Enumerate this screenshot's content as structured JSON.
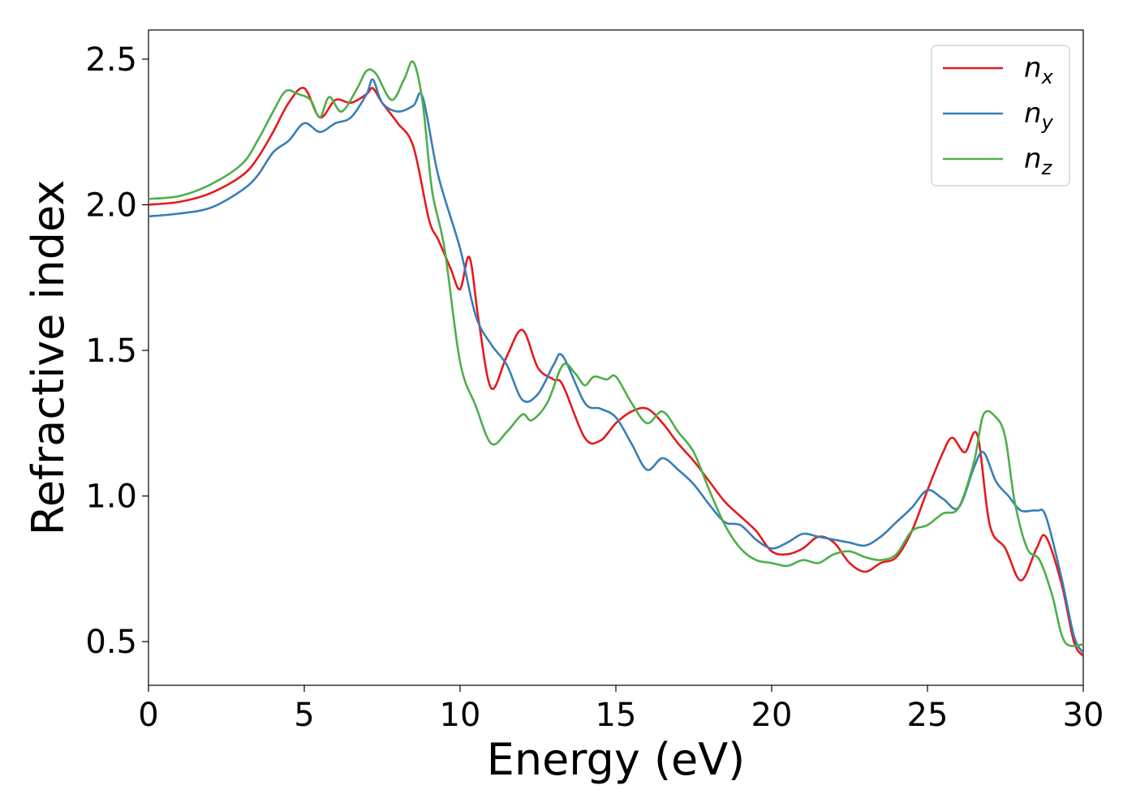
{
  "chart_data": {
    "type": "line",
    "xlabel": "Energy (eV)",
    "ylabel": "Refractive index",
    "xlim": [
      0,
      30
    ],
    "ylim": [
      0.35,
      2.6
    ],
    "xticks": [
      0,
      5,
      10,
      15,
      20,
      25,
      30
    ],
    "xtick_labels": [
      "0",
      "5",
      "10",
      "15",
      "20",
      "25",
      "30"
    ],
    "yticks": [
      0.5,
      1.0,
      1.5,
      2.0,
      2.5
    ],
    "ytick_labels": [
      "0.5",
      "1.0",
      "1.5",
      "2.0",
      "2.5"
    ],
    "grid": false,
    "legend_position": "top-right",
    "series": [
      {
        "name": "n_x",
        "label_base": "n",
        "label_sub": "x",
        "color": "#e41a1c",
        "points": [
          [
            0,
            2.0
          ],
          [
            1,
            2.01
          ],
          [
            2,
            2.04
          ],
          [
            3,
            2.1
          ],
          [
            3.5,
            2.16
          ],
          [
            4,
            2.25
          ],
          [
            4.5,
            2.35
          ],
          [
            5,
            2.4
          ],
          [
            5.5,
            2.3
          ],
          [
            6,
            2.36
          ],
          [
            6.5,
            2.35
          ],
          [
            7,
            2.38
          ],
          [
            7.2,
            2.4
          ],
          [
            7.5,
            2.35
          ],
          [
            8,
            2.28
          ],
          [
            8.5,
            2.2
          ],
          [
            9,
            1.95
          ],
          [
            9.3,
            1.88
          ],
          [
            9.7,
            1.78
          ],
          [
            10,
            1.71
          ],
          [
            10.3,
            1.82
          ],
          [
            10.6,
            1.6
          ],
          [
            11,
            1.37
          ],
          [
            11.5,
            1.48
          ],
          [
            12,
            1.57
          ],
          [
            12.5,
            1.44
          ],
          [
            13,
            1.4
          ],
          [
            13.3,
            1.38
          ],
          [
            14,
            1.2
          ],
          [
            14.5,
            1.19
          ],
          [
            15,
            1.25
          ],
          [
            15.5,
            1.29
          ],
          [
            16,
            1.3
          ],
          [
            16.5,
            1.25
          ],
          [
            17,
            1.18
          ],
          [
            17.5,
            1.12
          ],
          [
            18,
            1.05
          ],
          [
            18.5,
            0.98
          ],
          [
            19,
            0.93
          ],
          [
            19.5,
            0.88
          ],
          [
            20,
            0.81
          ],
          [
            20.5,
            0.8
          ],
          [
            21,
            0.82
          ],
          [
            21.5,
            0.86
          ],
          [
            22,
            0.84
          ],
          [
            22.5,
            0.77
          ],
          [
            23,
            0.74
          ],
          [
            23.5,
            0.77
          ],
          [
            24,
            0.79
          ],
          [
            24.5,
            0.88
          ],
          [
            25,
            1.02
          ],
          [
            25.5,
            1.15
          ],
          [
            25.8,
            1.2
          ],
          [
            26.2,
            1.15
          ],
          [
            26.6,
            1.21
          ],
          [
            27,
            0.9
          ],
          [
            27.5,
            0.82
          ],
          [
            28,
            0.71
          ],
          [
            28.5,
            0.82
          ],
          [
            28.8,
            0.86
          ],
          [
            29.3,
            0.7
          ],
          [
            29.7,
            0.5
          ],
          [
            30,
            0.45
          ]
        ]
      },
      {
        "name": "n_y",
        "label_base": "n",
        "label_sub": "y",
        "color": "#377eb8",
        "points": [
          [
            0,
            1.96
          ],
          [
            1,
            1.97
          ],
          [
            2,
            1.99
          ],
          [
            3,
            2.05
          ],
          [
            3.5,
            2.1
          ],
          [
            4,
            2.18
          ],
          [
            4.5,
            2.22
          ],
          [
            5,
            2.28
          ],
          [
            5.5,
            2.25
          ],
          [
            6,
            2.28
          ],
          [
            6.5,
            2.3
          ],
          [
            7,
            2.38
          ],
          [
            7.2,
            2.43
          ],
          [
            7.5,
            2.35
          ],
          [
            8,
            2.32
          ],
          [
            8.5,
            2.34
          ],
          [
            8.8,
            2.37
          ],
          [
            9.3,
            2.1
          ],
          [
            10,
            1.85
          ],
          [
            10.5,
            1.62
          ],
          [
            11,
            1.52
          ],
          [
            11.5,
            1.45
          ],
          [
            12,
            1.33
          ],
          [
            12.5,
            1.35
          ],
          [
            13,
            1.45
          ],
          [
            13.3,
            1.48
          ],
          [
            14,
            1.32
          ],
          [
            14.5,
            1.3
          ],
          [
            15,
            1.27
          ],
          [
            15.5,
            1.18
          ],
          [
            16,
            1.09
          ],
          [
            16.5,
            1.13
          ],
          [
            17,
            1.09
          ],
          [
            17.5,
            1.04
          ],
          [
            18,
            0.97
          ],
          [
            18.5,
            0.91
          ],
          [
            19,
            0.9
          ],
          [
            19.5,
            0.85
          ],
          [
            20,
            0.82
          ],
          [
            20.5,
            0.84
          ],
          [
            21,
            0.87
          ],
          [
            21.5,
            0.86
          ],
          [
            22,
            0.85
          ],
          [
            22.5,
            0.84
          ],
          [
            23,
            0.83
          ],
          [
            23.5,
            0.86
          ],
          [
            24,
            0.91
          ],
          [
            24.5,
            0.96
          ],
          [
            25,
            1.02
          ],
          [
            25.5,
            0.99
          ],
          [
            26,
            0.96
          ],
          [
            26.5,
            1.1
          ],
          [
            26.8,
            1.15
          ],
          [
            27.2,
            1.05
          ],
          [
            27.6,
            1.0
          ],
          [
            28,
            0.95
          ],
          [
            28.5,
            0.95
          ],
          [
            28.8,
            0.93
          ],
          [
            29.3,
            0.72
          ],
          [
            29.7,
            0.52
          ],
          [
            30,
            0.46
          ]
        ]
      },
      {
        "name": "n_z",
        "label_base": "n",
        "label_sub": "z",
        "color": "#4daf4a",
        "points": [
          [
            0,
            2.02
          ],
          [
            1,
            2.03
          ],
          [
            2,
            2.07
          ],
          [
            3,
            2.14
          ],
          [
            3.5,
            2.22
          ],
          [
            4,
            2.32
          ],
          [
            4.4,
            2.39
          ],
          [
            4.8,
            2.38
          ],
          [
            5.2,
            2.36
          ],
          [
            5.5,
            2.3
          ],
          [
            5.8,
            2.37
          ],
          [
            6.2,
            2.32
          ],
          [
            6.7,
            2.4
          ],
          [
            7,
            2.46
          ],
          [
            7.3,
            2.45
          ],
          [
            7.8,
            2.36
          ],
          [
            8.2,
            2.43
          ],
          [
            8.5,
            2.49
          ],
          [
            8.8,
            2.35
          ],
          [
            9.1,
            2.05
          ],
          [
            9.5,
            1.85
          ],
          [
            10,
            1.46
          ],
          [
            10.5,
            1.31
          ],
          [
            11,
            1.18
          ],
          [
            11.5,
            1.22
          ],
          [
            12,
            1.28
          ],
          [
            12.3,
            1.26
          ],
          [
            12.8,
            1.32
          ],
          [
            13.3,
            1.45
          ],
          [
            13.7,
            1.42
          ],
          [
            14,
            1.38
          ],
          [
            14.3,
            1.41
          ],
          [
            14.7,
            1.4
          ],
          [
            15,
            1.41
          ],
          [
            15.5,
            1.32
          ],
          [
            16,
            1.25
          ],
          [
            16.5,
            1.29
          ],
          [
            17,
            1.22
          ],
          [
            17.5,
            1.15
          ],
          [
            18,
            1.02
          ],
          [
            18.5,
            0.9
          ],
          [
            19,
            0.82
          ],
          [
            19.5,
            0.78
          ],
          [
            20,
            0.77
          ],
          [
            20.5,
            0.76
          ],
          [
            21,
            0.78
          ],
          [
            21.5,
            0.77
          ],
          [
            22,
            0.8
          ],
          [
            22.5,
            0.81
          ],
          [
            23,
            0.79
          ],
          [
            23.5,
            0.78
          ],
          [
            24,
            0.8
          ],
          [
            24.5,
            0.88
          ],
          [
            25,
            0.9
          ],
          [
            25.5,
            0.94
          ],
          [
            26,
            0.96
          ],
          [
            26.5,
            1.12
          ],
          [
            26.8,
            1.28
          ],
          [
            27.2,
            1.27
          ],
          [
            27.5,
            1.2
          ],
          [
            27.8,
            0.98
          ],
          [
            28.2,
            0.82
          ],
          [
            28.6,
            0.78
          ],
          [
            29,
            0.66
          ],
          [
            29.4,
            0.5
          ],
          [
            30,
            0.49
          ]
        ]
      }
    ]
  }
}
